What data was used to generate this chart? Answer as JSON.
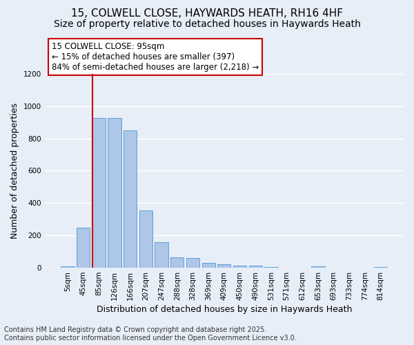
{
  "title_line1": "15, COLWELL CLOSE, HAYWARDS HEATH, RH16 4HF",
  "title_line2": "Size of property relative to detached houses in Haywards Heath",
  "xlabel": "Distribution of detached houses by size in Haywards Heath",
  "ylabel": "Number of detached properties",
  "categories": [
    "5sqm",
    "45sqm",
    "85sqm",
    "126sqm",
    "166sqm",
    "207sqm",
    "247sqm",
    "288sqm",
    "328sqm",
    "369sqm",
    "409sqm",
    "450sqm",
    "490sqm",
    "531sqm",
    "571sqm",
    "612sqm",
    "653sqm",
    "693sqm",
    "733sqm",
    "774sqm",
    "814sqm"
  ],
  "values": [
    8,
    248,
    928,
    928,
    848,
    355,
    158,
    65,
    62,
    30,
    20,
    12,
    12,
    5,
    0,
    0,
    8,
    0,
    0,
    0,
    5
  ],
  "bar_color": "#aec6e8",
  "bar_edge_color": "#5a9fd4",
  "red_line_x": 2.0,
  "annotation_text": "15 COLWELL CLOSE: 95sqm\n← 15% of detached houses are smaller (397)\n84% of semi-detached houses are larger (2,218) →",
  "annotation_box_color": "#ffffff",
  "annotation_box_edge": "#cc0000",
  "red_line_color": "#cc0000",
  "ylim": [
    0,
    1200
  ],
  "yticks": [
    0,
    200,
    400,
    600,
    800,
    1000,
    1200
  ],
  "background_color": "#e8eef8",
  "grid_color": "#ffffff",
  "footer_line1": "Contains HM Land Registry data © Crown copyright and database right 2025.",
  "footer_line2": "Contains public sector information licensed under the Open Government Licence v3.0.",
  "title_fontsize": 11,
  "subtitle_fontsize": 10,
  "axis_label_fontsize": 9,
  "tick_fontsize": 7.5,
  "annotation_fontsize": 8.5,
  "footer_fontsize": 7
}
